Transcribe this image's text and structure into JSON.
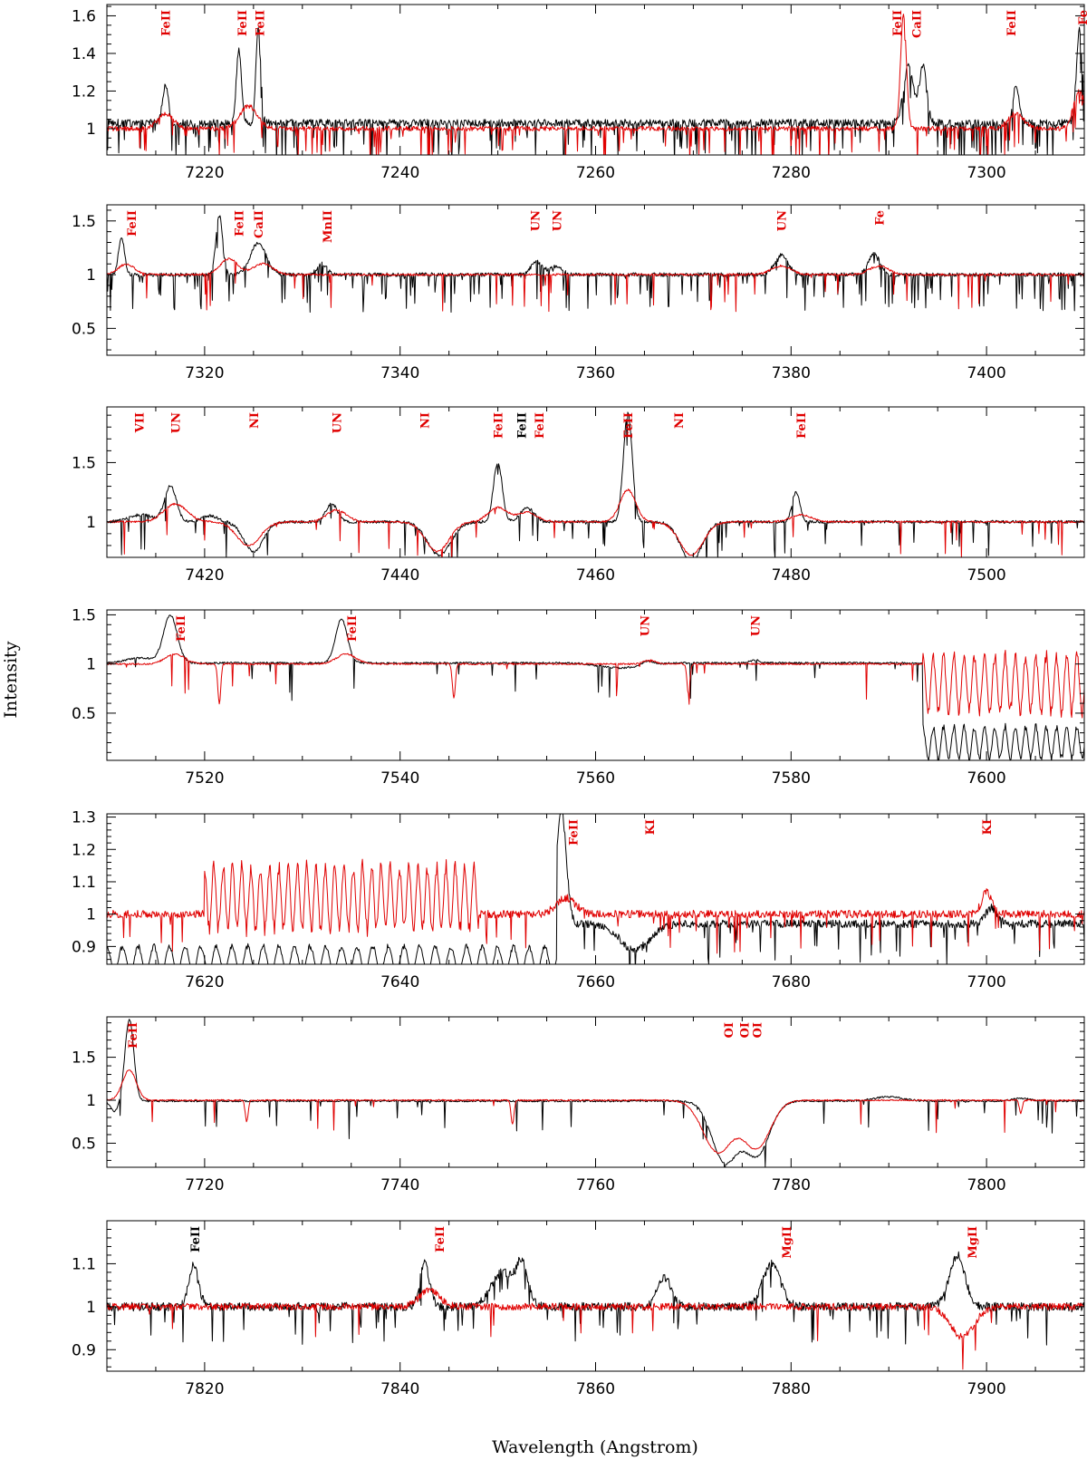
{
  "figure": {
    "xlabel": "Wavelength (Angstrom)",
    "ylabel": "Intensity"
  },
  "colors": {
    "observed": "#000000",
    "model": "#e00000",
    "label_default": "#e00000"
  },
  "chart_data": [
    {
      "type": "line",
      "xlim": [
        7210,
        7310
      ],
      "ylim": [
        0.86,
        1.66
      ],
      "xticks": [
        7220,
        7240,
        7260,
        7280,
        7300
      ],
      "yticks": [
        1,
        1.2,
        1.4,
        1.6
      ],
      "series": [
        {
          "color": "#000000",
          "baseline": 1.03,
          "noise": 0.02,
          "abs": 0.14,
          "seed": 11,
          "features": [
            [
              7216,
              0.2,
              0.3
            ],
            [
              7223.5,
              0.4,
              0.25
            ],
            [
              7225.5,
              0.5,
              0.25
            ],
            [
              7292,
              0.3,
              0.5
            ],
            [
              7293.5,
              0.3,
              0.4
            ],
            [
              7303,
              0.2,
              0.3
            ],
            [
              7309.5,
              0.5,
              0.3
            ]
          ]
        },
        {
          "color": "#e00000",
          "baseline": 1.0,
          "noise": 0.012,
          "abs": 0.08,
          "seed": 12,
          "features": [
            [
              7216,
              0.08,
              0.8
            ],
            [
              7224.5,
              0.12,
              0.9
            ],
            [
              7291.5,
              0.6,
              0.3
            ],
            [
              7303,
              0.08,
              0.8
            ],
            [
              7309.5,
              0.2,
              0.6
            ]
          ]
        }
      ],
      "line_labels": [
        {
          "text": "FeII",
          "x": 7216,
          "color": "#e00000"
        },
        {
          "text": "FeII",
          "x": 7223.8,
          "color": "#e00000"
        },
        {
          "text": "FeII",
          "x": 7225.6,
          "color": "#e00000"
        },
        {
          "text": "FeII",
          "x": 7290.8,
          "color": "#e00000"
        },
        {
          "text": "CaII",
          "x": 7292.8,
          "color": "#e00000"
        },
        {
          "text": "FeII",
          "x": 7302.5,
          "color": "#e00000"
        },
        {
          "text": "Fe",
          "x": 7309.8,
          "color": "#e00000"
        }
      ]
    },
    {
      "type": "line",
      "xlim": [
        7310,
        7410
      ],
      "ylim": [
        0.25,
        1.65
      ],
      "xticks": [
        7320,
        7340,
        7360,
        7380,
        7400
      ],
      "yticks": [
        0.5,
        1,
        1.5
      ],
      "series": [
        {
          "color": "#000000",
          "baseline": 1.0,
          "noise": 0.018,
          "abs": 0.12,
          "seed": 21,
          "features": [
            [
              7311.5,
              0.35,
              0.3
            ],
            [
              7321.5,
              0.55,
              0.35
            ],
            [
              7325.5,
              0.3,
              0.8
            ],
            [
              7332,
              0.1,
              0.5
            ],
            [
              7354,
              0.12,
              0.6
            ],
            [
              7356,
              0.08,
              0.6
            ],
            [
              7379,
              0.18,
              0.7
            ],
            [
              7388.5,
              0.2,
              0.6
            ]
          ]
        },
        {
          "color": "#e00000",
          "baseline": 1.0,
          "noise": 0.01,
          "abs": 0.03,
          "seed": 22,
          "features": [
            [
              7312,
              0.1,
              0.8
            ],
            [
              7322.5,
              0.15,
              0.9
            ],
            [
              7326,
              0.1,
              1.0
            ],
            [
              7379,
              0.08,
              1.0
            ],
            [
              7389,
              0.08,
              1.0
            ]
          ]
        }
      ],
      "line_labels": [
        {
          "text": "FeII",
          "x": 7312.5,
          "color": "#e00000"
        },
        {
          "text": "FeII",
          "x": 7323.5,
          "color": "#e00000"
        },
        {
          "text": "CaII",
          "x": 7325.5,
          "color": "#e00000"
        },
        {
          "text": "MnII",
          "x": 7332.5,
          "color": "#e00000"
        },
        {
          "text": "UN",
          "x": 7353.8,
          "color": "#e00000"
        },
        {
          "text": "UN",
          "x": 7356,
          "color": "#e00000"
        },
        {
          "text": "UN",
          "x": 7379,
          "color": "#e00000"
        },
        {
          "text": "Fe",
          "x": 7389,
          "color": "#e00000"
        }
      ]
    },
    {
      "type": "line",
      "xlim": [
        7410,
        7510
      ],
      "ylim": [
        0.7,
        1.97
      ],
      "xticks": [
        7420,
        7440,
        7460,
        7480,
        7500
      ],
      "yticks": [
        1,
        1.5
      ],
      "series": [
        {
          "color": "#000000",
          "baseline": 1.0,
          "noise": 0.012,
          "abs": 0.05,
          "seed": 31,
          "features": [
            [
              7413.5,
              0.06,
              1.2
            ],
            [
              7416.5,
              0.3,
              0.6
            ],
            [
              7420.5,
              0.05,
              0.8
            ],
            [
              7425,
              -0.25,
              1.0
            ],
            [
              7433,
              0.15,
              0.6
            ],
            [
              7444,
              -0.28,
              1.2
            ],
            [
              7450,
              0.5,
              0.45
            ],
            [
              7453,
              0.12,
              0.7
            ],
            [
              7463.3,
              0.92,
              0.45
            ],
            [
              7469.8,
              -0.33,
              1.1
            ],
            [
              7480.5,
              0.25,
              0.4
            ]
          ]
        },
        {
          "color": "#e00000",
          "baseline": 1.0,
          "noise": 0.008,
          "abs": 0.02,
          "seed": 32,
          "features": [
            [
              7417,
              0.15,
              1.2
            ],
            [
              7424.5,
              -0.2,
              1.2
            ],
            [
              7433.5,
              0.1,
              1.0
            ],
            [
              7443.8,
              -0.25,
              1.2
            ],
            [
              7450,
              0.12,
              1.0
            ],
            [
              7453,
              0.08,
              1.0
            ],
            [
              7463.3,
              0.27,
              0.8
            ],
            [
              7469.8,
              -0.28,
              1.2
            ],
            [
              7481,
              0.06,
              1.0
            ]
          ]
        }
      ],
      "line_labels": [
        {
          "text": "VII",
          "x": 7413.3,
          "color": "#e00000"
        },
        {
          "text": "UN",
          "x": 7417,
          "color": "#e00000"
        },
        {
          "text": "NI",
          "x": 7425,
          "color": "#e00000"
        },
        {
          "text": "UN",
          "x": 7433.5,
          "color": "#e00000"
        },
        {
          "text": "NI",
          "x": 7442.5,
          "color": "#e00000"
        },
        {
          "text": "FeII",
          "x": 7450,
          "color": "#e00000"
        },
        {
          "text": "FeII",
          "x": 7452.4,
          "color": "#000000"
        },
        {
          "text": "FeII",
          "x": 7454.2,
          "color": "#e00000"
        },
        {
          "text": "FeII",
          "x": 7463.3,
          "color": "#e00000"
        },
        {
          "text": "NI",
          "x": 7468.5,
          "color": "#e00000"
        },
        {
          "text": "FeII",
          "x": 7481,
          "color": "#e00000"
        }
      ]
    },
    {
      "type": "line",
      "xlim": [
        7510,
        7610
      ],
      "ylim": [
        0.02,
        1.55
      ],
      "xticks": [
        7520,
        7540,
        7560,
        7580,
        7600
      ],
      "yticks": [
        0.5,
        1,
        1.5
      ],
      "series": [
        {
          "color": "#000000",
          "baseline": 1.01,
          "noise": 0.01,
          "abs": 0.02,
          "seed": 41,
          "features": [
            [
              7513.5,
              0.05,
              1.5
            ],
            [
              7516.5,
              0.48,
              0.7
            ],
            [
              7534,
              0.45,
              0.6
            ],
            [
              7562.5,
              -0.05,
              2.0
            ],
            [
              7565.3,
              0.04,
              0.5
            ],
            [
              7576.3,
              0.03,
              0.5
            ]
          ]
        },
        {
          "color": "#e00000",
          "baseline": 1.0,
          "noise": 0.008,
          "abs": 0.01,
          "seed": 42,
          "features": [
            [
              7517,
              0.1,
              1.0
            ],
            [
              7521.5,
              -0.4,
              0.15
            ],
            [
              7534.5,
              0.1,
              1.0
            ],
            [
              7545.5,
              -0.35,
              0.15
            ],
            [
              7565.5,
              0.04,
              0.6
            ],
            [
              7569.5,
              -0.3,
              0.15
            ]
          ]
        }
      ],
      "telluric": [
        {
          "series": 0,
          "from": 7593.5,
          "to": 7610,
          "level": 0.2,
          "depth": 0.2,
          "period": 1.05
        },
        {
          "series": 1,
          "from": 7593.5,
          "to": 7610,
          "level": 0.8,
          "depth": 0.35,
          "period": 1.05
        }
      ],
      "line_labels": [
        {
          "text": "FeII",
          "x": 7517.5,
          "color": "#e00000"
        },
        {
          "text": "FeII",
          "x": 7535,
          "color": "#e00000"
        },
        {
          "text": "UN",
          "x": 7565,
          "color": "#e00000"
        },
        {
          "text": "UN",
          "x": 7576.3,
          "color": "#e00000"
        }
      ]
    },
    {
      "type": "line",
      "xlim": [
        7610,
        7710
      ],
      "ylim": [
        0.845,
        1.31
      ],
      "xticks": [
        7620,
        7640,
        7660,
        7680,
        7700
      ],
      "yticks": [
        0.9,
        1,
        1.1,
        1.2,
        1.3
      ],
      "series": [
        {
          "color": "#000000",
          "baseline": 0.97,
          "noise": 0.012,
          "abs": 0.05,
          "seed": 51,
          "features": [
            [
              7656.5,
              0.35,
              0.5
            ],
            [
              7664,
              -0.08,
              1.5
            ],
            [
              7700.5,
              0.05,
              0.6
            ]
          ]
        },
        {
          "color": "#e00000",
          "baseline": 1.0,
          "noise": 0.012,
          "abs": 0.06,
          "seed": 52,
          "features": [
            [
              7657,
              0.05,
              1.0
            ],
            [
              7700,
              0.07,
              0.5
            ]
          ]
        }
      ],
      "telluric": [
        {
          "series": 0,
          "from": 7610,
          "to": 7656,
          "level": 0.86,
          "depth": 0.05,
          "period": 1.6
        },
        {
          "series": 1,
          "from": 7620,
          "to": 7648,
          "level": 1.05,
          "depth": 0.12,
          "period": 0.95
        }
      ],
      "line_labels": [
        {
          "text": "FeII",
          "x": 7657.7,
          "color": "#e00000"
        },
        {
          "text": "KI",
          "x": 7665.5,
          "color": "#e00000"
        },
        {
          "text": "KI",
          "x": 7700,
          "color": "#e00000"
        }
      ]
    },
    {
      "type": "line",
      "xlim": [
        7710,
        7810
      ],
      "ylim": [
        0.22,
        1.97
      ],
      "xticks": [
        7720,
        7740,
        7760,
        7780,
        7800
      ],
      "yticks": [
        0.5,
        1,
        1.5
      ],
      "series": [
        {
          "color": "#000000",
          "baseline": 0.99,
          "noise": 0.01,
          "abs": 0.02,
          "seed": 61,
          "features": [
            [
              7710.8,
              -0.12,
              0.4
            ],
            [
              7712.3,
              0.95,
              0.45
            ],
            [
              7773.2,
              -0.7,
              1.3
            ],
            [
              7776.5,
              -0.62,
              1.3
            ],
            [
              7790,
              0.05,
              1.5
            ],
            [
              7803.5,
              0.03,
              1.0
            ]
          ]
        },
        {
          "color": "#e00000",
          "baseline": 1.0,
          "noise": 0.008,
          "abs": 0.01,
          "seed": 62,
          "features": [
            [
              7712.3,
              0.35,
              0.7
            ],
            [
              7724.3,
              -0.25,
              0.15
            ],
            [
              7751.5,
              -0.28,
              0.15
            ],
            [
              7772.5,
              -0.6,
              1.5
            ],
            [
              7776.5,
              -0.55,
              1.4
            ],
            [
              7803.5,
              -0.15,
              0.15
            ]
          ]
        }
      ],
      "line_labels": [
        {
          "text": "FeII",
          "x": 7712.6,
          "color": "#e00000"
        },
        {
          "text": "OI",
          "x": 7773.6,
          "color": "#e00000"
        },
        {
          "text": "OI",
          "x": 7775.2,
          "color": "#e00000"
        },
        {
          "text": "OI",
          "x": 7776.5,
          "color": "#e00000"
        }
      ]
    },
    {
      "type": "line",
      "xlim": [
        7810,
        7910
      ],
      "ylim": [
        0.85,
        1.2
      ],
      "xticks": [
        7820,
        7840,
        7860,
        7880,
        7900
      ],
      "yticks": [
        0.9,
        1,
        1.1
      ],
      "series": [
        {
          "color": "#000000",
          "baseline": 1.0,
          "noise": 0.01,
          "abs": 0.06,
          "seed": 71,
          "features": [
            [
              7818.9,
              0.1,
              0.5
            ],
            [
              7842.5,
              0.1,
              0.5
            ],
            [
              7850.5,
              0.08,
              1.2
            ],
            [
              7852.5,
              0.09,
              0.6
            ],
            [
              7867,
              0.07,
              0.7
            ],
            [
              7878,
              0.1,
              0.9
            ],
            [
              7897,
              0.12,
              0.8
            ]
          ]
        },
        {
          "color": "#e00000",
          "baseline": 1.0,
          "noise": 0.008,
          "abs": 0.015,
          "seed": 72,
          "features": [
            [
              7843,
              0.04,
              1.0
            ],
            [
              7897.5,
              -0.07,
              1.2
            ]
          ]
        }
      ],
      "line_labels": [
        {
          "text": "FeII",
          "x": 7819,
          "color": "#000000"
        },
        {
          "text": "FeII",
          "x": 7844,
          "color": "#e00000"
        },
        {
          "text": "MgII",
          "x": 7879.5,
          "color": "#e00000"
        },
        {
          "text": "MgII",
          "x": 7898.5,
          "color": "#e00000"
        }
      ]
    }
  ]
}
